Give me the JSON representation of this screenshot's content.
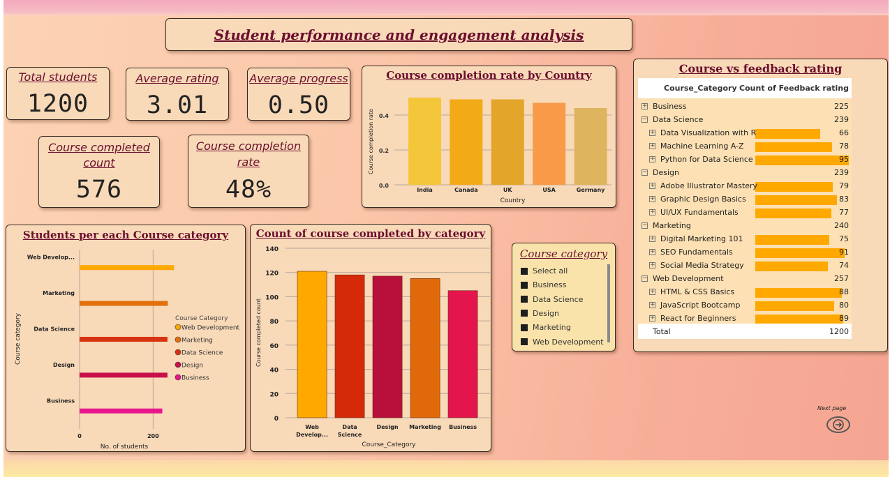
{
  "dashboard": {
    "title": "Student performance and engagement analysis",
    "next_page_label": "Next page"
  },
  "kpis": {
    "total_students": {
      "label": "Total students",
      "value": "1200"
    },
    "average_rating": {
      "label": "Average rating",
      "value": "3.01"
    },
    "average_progress": {
      "label": "Average progress",
      "value": "0.50"
    },
    "completed_count": {
      "label_line1": "Course completed",
      "label_line2": "count",
      "value": "576"
    },
    "completion_rate": {
      "label_line1": "Course completion",
      "label_line2": "rate",
      "value": "48%"
    }
  },
  "colors": {
    "accent_title": "#6b0f2e",
    "card_bg": "#f8d9b8",
    "table_bar": "#ffa800"
  },
  "chart_data": [
    {
      "id": "completion_by_country",
      "type": "bar",
      "title": "Course completion rate by Country",
      "xlabel": "Country",
      "ylabel": "Course completion rate",
      "categories": [
        "India",
        "Canada",
        "UK",
        "USA",
        "Germany"
      ],
      "values": [
        0.5,
        0.49,
        0.49,
        0.47,
        0.44
      ],
      "colors": [
        "#f4c63a",
        "#f2aa16",
        "#e3a52a",
        "#f89a48",
        "#deb45e"
      ],
      "yticks": [
        "0.0",
        "0.2",
        "0.4"
      ],
      "ylim": [
        0,
        0.5
      ],
      "grid": true
    },
    {
      "id": "students_per_category",
      "type": "bar",
      "orientation": "horizontal",
      "title": "Students per each Course category",
      "xlabel": "No. of students",
      "ylabel": "Course category",
      "categories": [
        "Web Develop...",
        "Marketing",
        "Data Science",
        "Design",
        "Business"
      ],
      "values": [
        257,
        240,
        239,
        239,
        225
      ],
      "colors": [
        "#ffa800",
        "#e2700c",
        "#d83311",
        "#c7114a",
        "#e8158d"
      ],
      "xticks": [
        "0",
        "200"
      ],
      "xlim": [
        0,
        300
      ],
      "legend_title": "Course Category",
      "legend": [
        "Web Development",
        "Marketing",
        "Data Science",
        "Design",
        "Business"
      ],
      "legend_position": "right",
      "grid": true
    },
    {
      "id": "completed_by_category",
      "type": "bar",
      "title": "Count of course completed by category",
      "xlabel": "Course_Category",
      "ylabel": "Course completed count",
      "categories": [
        "Web Develop...",
        "Data Science",
        "Design",
        "Marketing",
        "Business"
      ],
      "values": [
        121,
        118,
        117,
        115,
        105
      ],
      "colors": [
        "#ffa800",
        "#d52a0a",
        "#b80f3b",
        "#e06a0a",
        "#e3154c"
      ],
      "yticks": [
        "0",
        "20",
        "40",
        "60",
        "80",
        "100",
        "120",
        "140"
      ],
      "ylim": [
        0,
        140
      ],
      "grid": true
    }
  ],
  "slicer": {
    "title": "Course category",
    "items": [
      "Select all",
      "Business",
      "Data Science",
      "Design",
      "Marketing",
      "Web Development"
    ]
  },
  "matrix": {
    "title": "Course vs feedback rating",
    "col1": "Course_Category",
    "col2": "Count of Feedback rating",
    "rows": [
      {
        "level": 0,
        "expander": "+",
        "label": "Business",
        "value": "225"
      },
      {
        "level": 0,
        "expander": "−",
        "label": "Data Science",
        "value": "239"
      },
      {
        "level": 1,
        "expander": "+",
        "label": "Data Visualization with R",
        "value": "66",
        "bar": 66
      },
      {
        "level": 1,
        "expander": "+",
        "label": "Machine Learning A-Z",
        "value": "78",
        "bar": 78
      },
      {
        "level": 1,
        "expander": "+",
        "label": "Python for Data Science",
        "value": "95",
        "bar": 95
      },
      {
        "level": 0,
        "expander": "−",
        "label": "Design",
        "value": "239"
      },
      {
        "level": 1,
        "expander": "+",
        "label": "Adobe Illustrator Mastery",
        "value": "79",
        "bar": 79
      },
      {
        "level": 1,
        "expander": "+",
        "label": "Graphic Design Basics",
        "value": "83",
        "bar": 83
      },
      {
        "level": 1,
        "expander": "+",
        "label": "UI/UX Fundamentals",
        "value": "77",
        "bar": 77
      },
      {
        "level": 0,
        "expander": "−",
        "label": "Marketing",
        "value": "240"
      },
      {
        "level": 1,
        "expander": "+",
        "label": "Digital Marketing 101",
        "value": "75",
        "bar": 75
      },
      {
        "level": 1,
        "expander": "+",
        "label": "SEO Fundamentals",
        "value": "91",
        "bar": 91
      },
      {
        "level": 1,
        "expander": "+",
        "label": "Social Media Strategy",
        "value": "74",
        "bar": 74
      },
      {
        "level": 0,
        "expander": "−",
        "label": "Web Development",
        "value": "257"
      },
      {
        "level": 1,
        "expander": "+",
        "label": "HTML & CSS Basics",
        "value": "88",
        "bar": 88
      },
      {
        "level": 1,
        "expander": "+",
        "label": "JavaScript Bootcamp",
        "value": "80",
        "bar": 80
      },
      {
        "level": 1,
        "expander": "+",
        "label": "React for Beginners",
        "value": "89",
        "bar": 89
      }
    ],
    "total_label": "Total",
    "total_value": "1200"
  }
}
